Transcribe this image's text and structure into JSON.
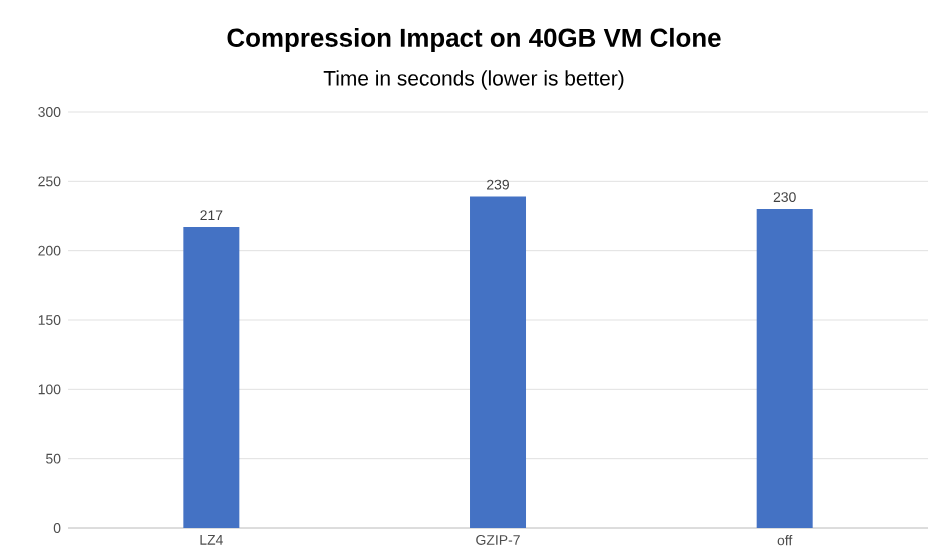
{
  "chart_data": {
    "type": "bar",
    "title": "Compression Impact on 40GB VM Clone",
    "subtitle": "Time in seconds (lower is better)",
    "categories": [
      "LZ4",
      "GZIP-7",
      "off"
    ],
    "values": [
      217,
      239,
      230
    ],
    "color": "#4472c4",
    "ylim": [
      0,
      300
    ],
    "yticks": [
      0,
      50,
      100,
      150,
      200,
      250,
      300
    ],
    "grid": "y",
    "data_labels": true
  }
}
